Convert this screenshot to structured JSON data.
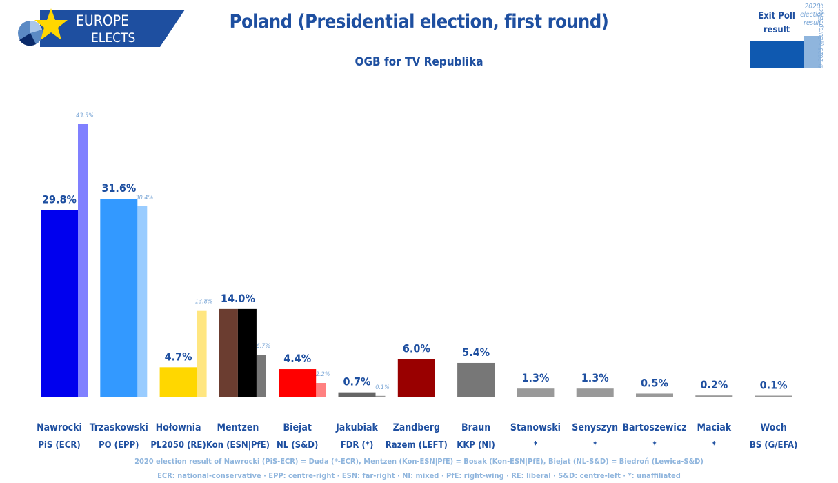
{
  "header": {
    "logo_line1": "EUROPE",
    "logo_line2": "ELECTS",
    "title": "Poland (Presidential election, first round)",
    "subtitle": "OGB for TV Republika"
  },
  "legend": {
    "exit_label": "Exit Poll result",
    "prev_label": "2020 election result",
    "exit_color": "#0f59b0",
    "prev_color": "#8fb5dd"
  },
  "copyright": "© 2025 @EuropeElects",
  "footnotes": {
    "line1": "2020 election result of Nawrocki (PiS-ECR) = Duda (*-ECR), Mentzen (Kon-ESN|PfE) = Bosak (Kon-ESN|PfE), Biejat (NL-S&D) = Biedroń (Lewica-S&D)",
    "line2": "ECR: national-conservative · EPP: centre-right · ESN: far-right · NI: mixed · PfE: right-wing · RE: liberal · S&D: centre-left · *: unaffiliated"
  },
  "chart_data": {
    "type": "bar",
    "title": "Poland (Presidential election, first round)",
    "subtitle": "OGB for TV Republika",
    "ylim": [
      0,
      45
    ],
    "unit": "%",
    "categories": [
      "Nawrocki",
      "Trzaskowski",
      "Hołownia",
      "Mentzen",
      "Biejat",
      "Jakubiak",
      "Zandberg",
      "Braun",
      "Stanowski",
      "Senyszyn",
      "Bartoszewicz",
      "Maciak",
      "Woch"
    ],
    "parties": [
      "PiS (ECR)",
      "PO (EPP)",
      "PL2050 (RE)",
      "Kon (ESN|PfE)",
      "NL (S&D)",
      "FDR (*)",
      "Razem (LEFT)",
      "KKP (NI)",
      "*",
      "*",
      "*",
      "*",
      "BS (G/EFA)"
    ],
    "series": [
      {
        "name": "Exit Poll result",
        "values": [
          29.8,
          31.6,
          4.7,
          14.0,
          4.4,
          0.7,
          6.0,
          5.4,
          1.3,
          1.3,
          0.5,
          0.2,
          0.1
        ],
        "labels": [
          "29.8%",
          "31.6%",
          "4.7%",
          "14.0%",
          "4.4%",
          "0.7%",
          "6.0%",
          "5.4%",
          "1.3%",
          "1.3%",
          "0.5%",
          "0.2%",
          "0.1%"
        ],
        "colors": [
          "#0000ee",
          "#3399ff",
          "#ffd700",
          "#6b3d30",
          "#ff0000",
          "#666666",
          "#990000",
          "#777777",
          "#999999",
          "#999999",
          "#999999",
          "#999999",
          "#999999"
        ],
        "secondary_colors": [
          null,
          null,
          null,
          "#000000",
          null,
          null,
          null,
          null,
          null,
          null,
          null,
          null,
          null
        ]
      },
      {
        "name": "2020 election result",
        "values": [
          43.5,
          30.4,
          13.8,
          6.7,
          2.2,
          0.1,
          null,
          null,
          null,
          null,
          null,
          null,
          null
        ],
        "labels": [
          "43.5%",
          "30.4%",
          "13.8%",
          "6.7%",
          "2.2%",
          "0.1%",
          null,
          null,
          null,
          null,
          null,
          null,
          null
        ],
        "colors": [
          "#8080ff",
          "#99ccff",
          "#ffe680",
          "#777777",
          "#ff8080",
          "#999999",
          null,
          null,
          null,
          null,
          null,
          null,
          null
        ]
      }
    ]
  }
}
